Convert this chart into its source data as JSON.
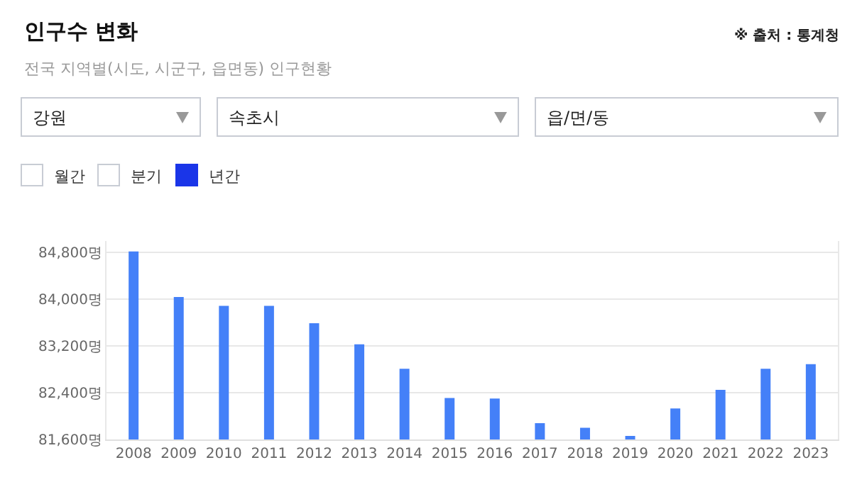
{
  "chart_data": {
    "type": "bar",
    "title": "인구수 변화",
    "subtitle": "전국 지역별(시도, 시군구, 읍면동) 인구현황",
    "annotations": [
      "※ 출처 : 통계청",
      "강원",
      "속초시",
      "읍/면/동",
      "월간",
      "분기",
      "년간"
    ],
    "categories": [
      "2008",
      "2009",
      "2010",
      "2011",
      "2012",
      "2013",
      "2014",
      "2015",
      "2016",
      "2017",
      "2018",
      "2019",
      "2020",
      "2021",
      "2022",
      "2023"
    ],
    "values": [
      84820,
      84040,
      83890,
      83890,
      83590,
      83230,
      82810,
      82310,
      82300,
      81880,
      81800,
      81660,
      82130,
      82450,
      82810,
      82890
    ],
    "color": "#4480f8",
    "ylim": [
      81600,
      85000
    ],
    "yticks": [
      {
        "value": 81600,
        "label": "81,600명"
      },
      {
        "value": 82400,
        "label": "82,400명"
      },
      {
        "value": 83200,
        "label": "83,200명"
      },
      {
        "value": 84000,
        "label": "84,000명"
      },
      {
        "value": 84800,
        "label": "84,800명"
      }
    ],
    "grid": "y",
    "legend": false
  }
}
